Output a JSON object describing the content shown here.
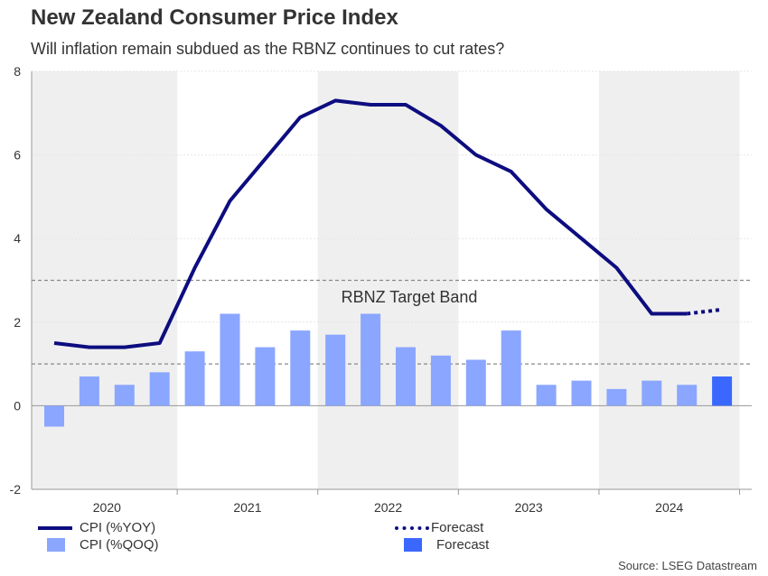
{
  "title": "New Zealand Consumer Price Index",
  "subtitle": "Will inflation remain subdued as the RBNZ continues to cut rates?",
  "source": "Source: LSEG Datastream",
  "colors": {
    "line": "#0d0d80",
    "bar": "#8aa6ff",
    "bar_forecast": "#3a68ff",
    "band_shade": "#efefef",
    "band_line": "#888888"
  },
  "chart_data": {
    "type": "bar+line",
    "title": "New Zealand Consumer Price Index",
    "ylim": [
      -2,
      8
    ],
    "yticks": [
      -2,
      0,
      2,
      4,
      6,
      8
    ],
    "years": [
      "2020",
      "2021",
      "2022",
      "2023",
      "2024"
    ],
    "quarters": [
      "2020Q1",
      "2020Q2",
      "2020Q3",
      "2020Q4",
      "2021Q1",
      "2021Q2",
      "2021Q3",
      "2021Q4",
      "2022Q1",
      "2022Q2",
      "2022Q3",
      "2022Q4",
      "2023Q1",
      "2023Q2",
      "2023Q3",
      "2023Q4",
      "2024Q1",
      "2024Q2",
      "2024Q3",
      "2024Q4"
    ],
    "series": [
      {
        "name": "CPI (%YOY)",
        "kind": "line",
        "values": [
          1.5,
          1.4,
          1.4,
          1.5,
          3.3,
          4.9,
          5.9,
          6.9,
          7.3,
          7.2,
          7.2,
          6.7,
          6.0,
          5.6,
          4.7,
          4.0,
          3.3,
          2.2,
          2.2,
          null
        ]
      },
      {
        "name": "Forecast",
        "kind": "line-forecast",
        "values": [
          null,
          null,
          null,
          null,
          null,
          null,
          null,
          null,
          null,
          null,
          null,
          null,
          null,
          null,
          null,
          null,
          null,
          null,
          2.2,
          2.3
        ]
      },
      {
        "name": "CPI (%QOQ)",
        "kind": "bar",
        "values": [
          -0.5,
          0.7,
          0.5,
          0.8,
          1.3,
          2.2,
          1.4,
          1.8,
          1.7,
          2.2,
          1.4,
          1.2,
          1.1,
          1.8,
          0.5,
          0.6,
          0.4,
          0.6,
          0.5,
          null
        ]
      },
      {
        "name": "Forecast",
        "kind": "bar-forecast",
        "values": [
          null,
          null,
          null,
          null,
          null,
          null,
          null,
          null,
          null,
          null,
          null,
          null,
          null,
          null,
          null,
          null,
          null,
          null,
          null,
          0.7
        ]
      }
    ],
    "target_band": {
      "label": "RBNZ Target Band",
      "low": 1,
      "high": 3
    },
    "legend": [
      {
        "label": "CPI (%YOY)",
        "swatch": "line"
      },
      {
        "label": "Forecast",
        "swatch": "dotted-line"
      },
      {
        "label": "CPI (%QOQ)",
        "swatch": "bar"
      },
      {
        "label": "Forecast",
        "swatch": "bar-forecast"
      }
    ]
  }
}
